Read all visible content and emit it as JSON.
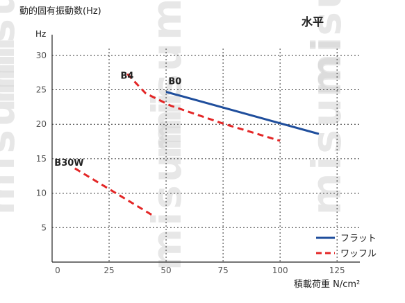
{
  "chart_data": {
    "type": "line",
    "title": "水平",
    "ylabel": "動的固有振動数(Hz)",
    "yunit": "Hz",
    "xlabel": "積載荷重 N/cm²",
    "xlim": [
      0,
      135
    ],
    "ylim": [
      0,
      33
    ],
    "x_ticks": [
      0,
      25,
      50,
      75,
      100,
      125
    ],
    "y_ticks": [
      5,
      10,
      15,
      20,
      25,
      30
    ],
    "grid": true,
    "legend_position": "bottom-right",
    "series": [
      {
        "name": "フラット",
        "style": "solid",
        "color": "#1f4e9c",
        "x": [
          50,
          117
        ],
        "y": [
          24.7,
          18.6
        ]
      },
      {
        "name": "ワッフル",
        "style": "dashed",
        "color": "#e32626",
        "x": [
          33,
          41,
          52,
          75,
          100
        ],
        "y": [
          27.3,
          24.5,
          22.7,
          20.1,
          17.6
        ]
      },
      {
        "name": "ワッフル",
        "style": "dashed",
        "color": "#e32626",
        "x": [
          10,
          44
        ],
        "y": [
          13.6,
          6.8
        ]
      }
    ],
    "annotations": [
      {
        "text": "B4",
        "x": 30,
        "y": 26.6
      },
      {
        "text": "B0",
        "x": 51,
        "y": 25.8
      },
      {
        "text": "B30W",
        "x": 1,
        "y": 14.0
      }
    ],
    "watermark": "misumi"
  }
}
